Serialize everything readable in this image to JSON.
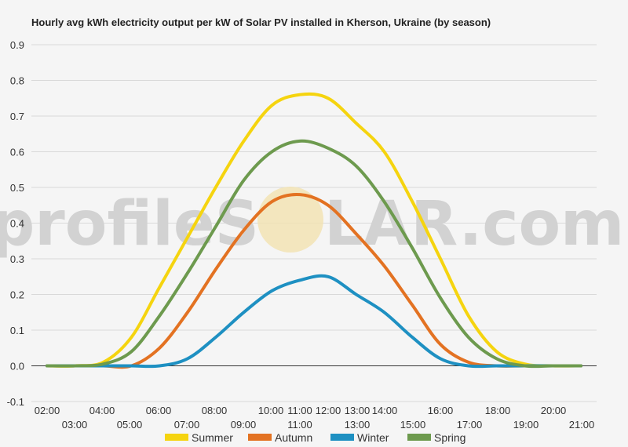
{
  "watermark": {
    "left": "profileS",
    "right": "LAR.com"
  },
  "chart_data": {
    "type": "line",
    "title": "Hourly avg kWh electricity output per kW of Solar PV installed in Kherson, Ukraine (by season)",
    "xlabel": "",
    "ylabel": "",
    "ylim": [
      -0.1,
      0.9
    ],
    "yticks": [
      "0.9",
      "0.8",
      "0.7",
      "0.6",
      "0.5",
      "0.4",
      "0.3",
      "0.2",
      "0.1",
      "0.0",
      "-0.1"
    ],
    "grid": true,
    "legend": "bottom",
    "x_top_labels": [
      "02:00",
      "04:00",
      "06:00",
      "08:00",
      "10:00",
      "11:00",
      "12:00",
      "13:00",
      "14:00",
      "16:00",
      "18:00",
      "20:00"
    ],
    "x_bottom_labels": [
      "03:00",
      "05:00",
      "07:00",
      "09:00",
      "11:00",
      "13:00",
      "15:00",
      "17:00",
      "19:00",
      "21:00"
    ],
    "x": [
      2,
      3,
      4,
      5,
      6,
      7,
      8,
      9,
      10,
      11,
      12,
      13,
      14,
      15,
      16,
      17,
      18,
      19,
      20,
      21
    ],
    "series": [
      {
        "name": "Summer",
        "color": "#f5d40f",
        "values": [
          0,
          0,
          0.01,
          0.08,
          0.22,
          0.36,
          0.5,
          0.63,
          0.73,
          0.76,
          0.75,
          0.68,
          0.6,
          0.46,
          0.3,
          0.14,
          0.04,
          0.005,
          0,
          0
        ]
      },
      {
        "name": "Autumn",
        "color": "#e37222",
        "values": [
          0,
          0,
          0,
          0,
          0.05,
          0.15,
          0.27,
          0.38,
          0.46,
          0.48,
          0.45,
          0.37,
          0.28,
          0.17,
          0.06,
          0.01,
          0,
          0,
          0,
          0
        ]
      },
      {
        "name": "Winter",
        "color": "#1e90c2",
        "values": [
          0,
          0,
          0,
          0,
          0,
          0.02,
          0.08,
          0.15,
          0.21,
          0.24,
          0.25,
          0.2,
          0.15,
          0.08,
          0.02,
          0,
          0,
          0,
          0,
          0
        ]
      },
      {
        "name": "Spring",
        "color": "#6d9a4e",
        "values": [
          0,
          0,
          0.005,
          0.04,
          0.14,
          0.26,
          0.39,
          0.52,
          0.6,
          0.63,
          0.61,
          0.56,
          0.46,
          0.33,
          0.19,
          0.08,
          0.02,
          0,
          0,
          0
        ]
      }
    ]
  }
}
